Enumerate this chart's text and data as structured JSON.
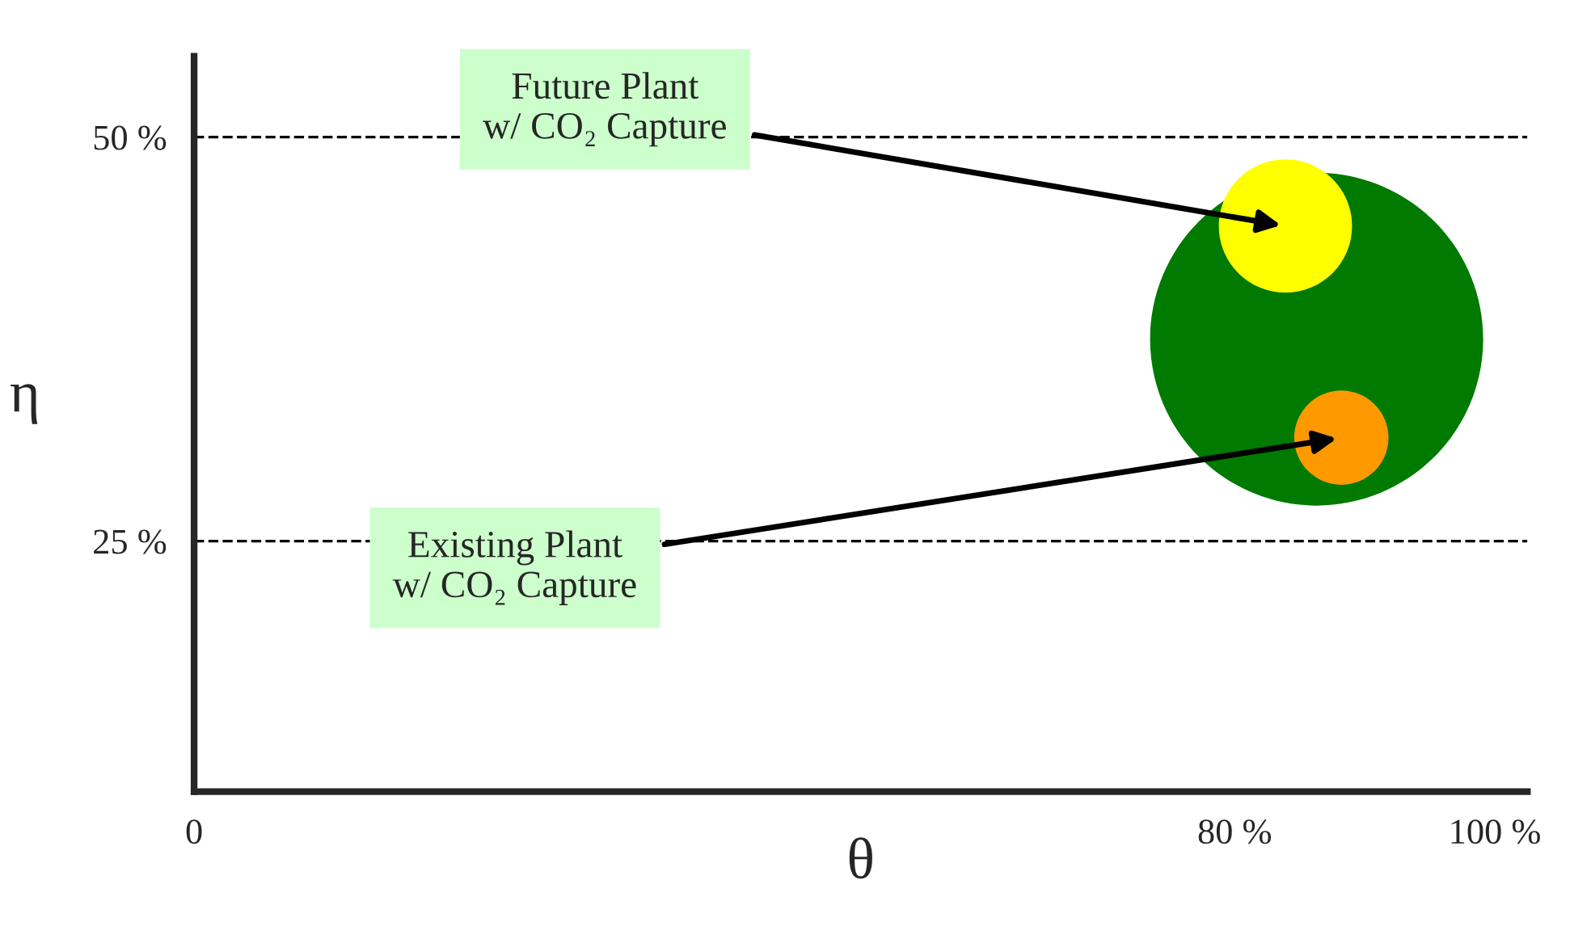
{
  "chart_data": {
    "type": "bubble",
    "xlabel": "θ",
    "ylabel": "η",
    "x": [
      86.3,
      83.9,
      88.2
    ],
    "values": [
      37.5,
      44.5,
      31.4
    ],
    "sizes": [
      1,
      0.16,
      0.08
    ],
    "colors": [
      "#007a00",
      "#ffff00",
      "#ff9900"
    ],
    "xlim": [
      0,
      102.5
    ],
    "ylim": [
      9.5,
      55
    ],
    "xticks": [
      {
        "value": 0,
        "label": "0"
      },
      {
        "value": 80,
        "label": "80 %"
      },
      {
        "value": 100,
        "label": "100 %"
      }
    ],
    "yticks": [
      {
        "value": 25,
        "label": "25 %"
      },
      {
        "value": 50,
        "label": "50 %"
      }
    ],
    "ref_lines": [
      {
        "axis": "y",
        "value": 25,
        "line_style": "dashed",
        "color": "#000000"
      },
      {
        "axis": "y",
        "value": 50,
        "line_style": "dashed",
        "color": "#000000"
      }
    ],
    "annotations": [
      {
        "text": "Future Plant\nw/ CO₂ Capture",
        "x": 83.9,
        "y": 44.5
      },
      {
        "text": "Existing Plant\nw/ CO₂ Capture",
        "x": 88.2,
        "y": 31.4
      }
    ],
    "grid": false,
    "legend": false
  }
}
